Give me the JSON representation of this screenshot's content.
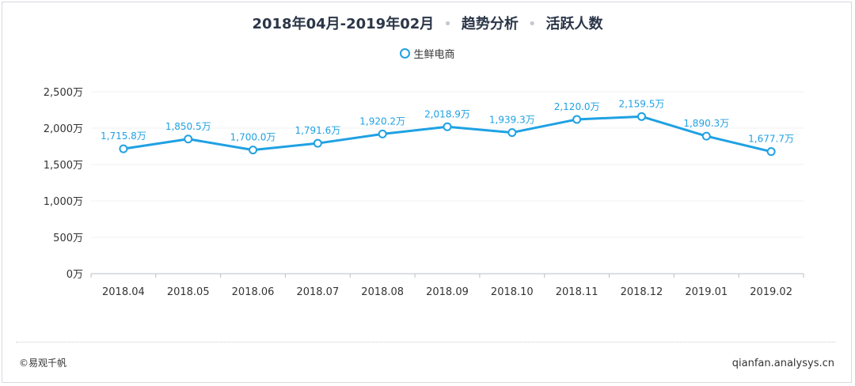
{
  "header": {
    "period": "2018年04月-2019年02月",
    "section": "趋势分析",
    "metric": "活跃人数"
  },
  "footer": {
    "copyright": "©易观千帆",
    "site": "qianfan.analysys.cn"
  },
  "chart_data": {
    "type": "line",
    "categories": [
      "2018.04",
      "2018.05",
      "2018.06",
      "2018.07",
      "2018.08",
      "2018.09",
      "2018.10",
      "2018.11",
      "2018.12",
      "2019.01",
      "2019.02"
    ],
    "series": [
      {
        "name": "生鲜电商",
        "values": [
          1715.8,
          1850.5,
          1700.0,
          1791.6,
          1920.2,
          2018.9,
          1939.3,
          2120.0,
          2159.5,
          1890.3,
          1677.7
        ],
        "labels": [
          "1,715.8万",
          "1,850.5万",
          "1,700.0万",
          "1,791.6万",
          "1,920.2万",
          "2,018.9万",
          "1,939.3万",
          "2,120.0万",
          "2,159.5万",
          "1,890.3万",
          "1,677.7万"
        ],
        "color": "#1fa1e3"
      }
    ],
    "yticks": [
      0,
      500,
      1000,
      1500,
      2000,
      2500
    ],
    "ytick_labels": [
      "0万",
      "500万",
      "1,000万",
      "1,500万",
      "2,000万",
      "2,500万"
    ],
    "ylim": [
      0,
      2500
    ],
    "grid": true,
    "legend_position": "top-center",
    "colors": {
      "line": "#1fa1e3",
      "label": "#1fa1e3",
      "axis_text": "#333333",
      "grid": "#f0f1f3"
    }
  }
}
